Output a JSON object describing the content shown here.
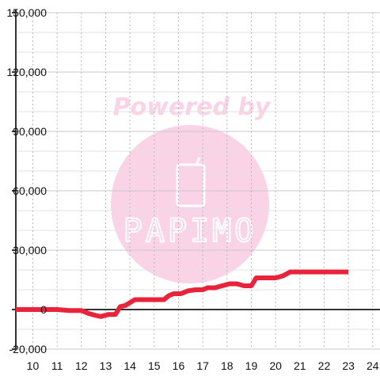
{
  "chart_data": {
    "type": "line",
    "title": "",
    "xlabel": "",
    "ylabel": "",
    "xlim": [
      9.3,
      24.3
    ],
    "ylim": [
      -20000,
      150000
    ],
    "x_ticks": [
      10,
      11,
      12,
      13,
      14,
      15,
      16,
      17,
      18,
      19,
      20,
      21,
      22,
      23,
      24
    ],
    "x_tick_labels": [
      "10",
      "11",
      "12",
      "13",
      "14",
      "15",
      "16",
      "17",
      "18",
      "19",
      "20",
      "21",
      "22",
      "23",
      "24"
    ],
    "y_ticks": [
      -20000,
      0,
      30000,
      60000,
      90000,
      120000,
      150000
    ],
    "y_tick_labels": [
      "-20,000",
      "0",
      "30,000",
      "60,000",
      "90,000",
      "120,000",
      "150,000"
    ],
    "y_minor_step": 10000,
    "grid": true,
    "series": [
      {
        "color": "#e8233a",
        "x": [
          9.3,
          10.0,
          10.5,
          11.0,
          11.5,
          12.0,
          12.3,
          12.6,
          12.8,
          13.1,
          13.4,
          13.6,
          13.8,
          14.0,
          14.2,
          14.6,
          15.0,
          15.4,
          15.6,
          15.8,
          16.1,
          16.4,
          16.7,
          17.0,
          17.2,
          17.5,
          17.8,
          18.1,
          18.4,
          18.7,
          19.0,
          19.2,
          19.6,
          20.0,
          20.3,
          20.6,
          21.0,
          21.5,
          22.0,
          22.5,
          23.0
        ],
        "y": [
          0,
          0,
          0,
          0,
          -500,
          -500,
          -2000,
          -3000,
          -3500,
          -2500,
          -2500,
          1500,
          2000,
          3500,
          5000,
          5000,
          5000,
          5000,
          7000,
          8000,
          8000,
          9500,
          10000,
          10000,
          11000,
          11000,
          12000,
          13000,
          13000,
          12000,
          12000,
          16000,
          16000,
          16000,
          17000,
          19000,
          19000,
          19000,
          19000,
          19000,
          19000
        ]
      }
    ]
  },
  "watermark": {
    "caption": "Powered by",
    "brand": "PAPIMO",
    "caption_color": "#fbd3e6",
    "circle_color": "#fbd3e6",
    "logo_color": "#ffffff"
  },
  "colors": {
    "background": "#ffffff",
    "grid_major": "#c8c8c8",
    "grid_minor": "#e2e2e2",
    "grid_vertical": "#b8b8b8",
    "axis": "#333333",
    "zero_line": "#333333"
  }
}
